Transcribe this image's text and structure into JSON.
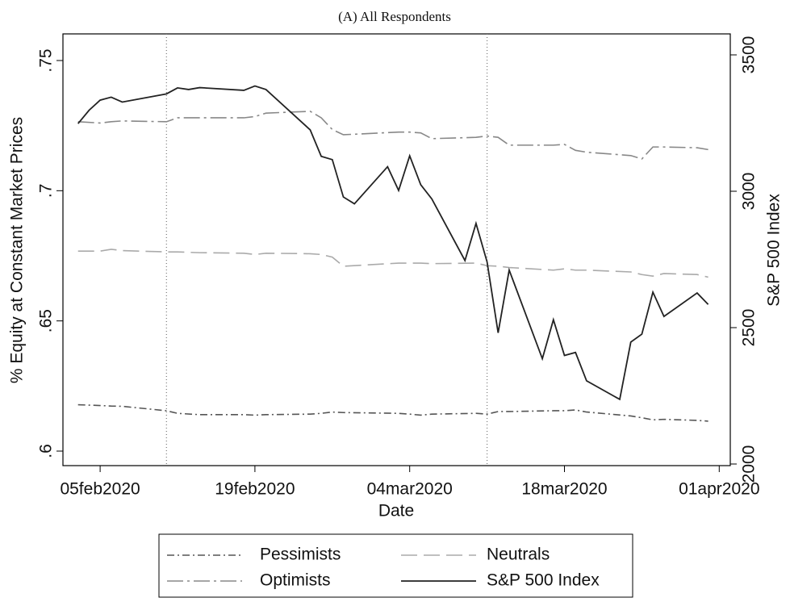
{
  "chart_data": {
    "type": "line",
    "title": "(A)  All Respondents",
    "x_label": "Date",
    "y_label": "% Equity at Constant Market Prices",
    "y2_label": "S&P 500 Index",
    "xlim": [
      "2020-02-02",
      "2020-04-02"
    ],
    "xticks": [
      {
        "value": "2020-02-05",
        "label": "05feb2020"
      },
      {
        "value": "2020-02-19",
        "label": "19feb2020"
      },
      {
        "value": "2020-03-04",
        "label": "04mar2020"
      },
      {
        "value": "2020-03-18",
        "label": "18mar2020"
      },
      {
        "value": "2020-04-01",
        "label": "01apr2020"
      }
    ],
    "ylim": [
      0.6,
      0.75
    ],
    "yticks": [
      {
        "value": 0.6,
        "label": ".6"
      },
      {
        "value": 0.65,
        "label": ".65"
      },
      {
        "value": 0.7,
        "label": ".7"
      },
      {
        "value": 0.75,
        "label": ".75"
      }
    ],
    "y2lim": [
      2000,
      3500
    ],
    "y2ticks": [
      2000,
      2500,
      3000,
      3500
    ],
    "vlines": [
      "2020-02-11",
      "2020-03-11"
    ],
    "series": [
      {
        "name": "Pessimists",
        "color": "#555555",
        "style": "dashdot",
        "x": [
          "2020-02-03",
          "2020-02-05",
          "2020-02-06",
          "2020-02-07",
          "2020-02-11",
          "2020-02-12",
          "2020-02-14",
          "2020-02-18",
          "2020-02-19",
          "2020-02-20",
          "2020-02-24",
          "2020-02-25",
          "2020-02-26",
          "2020-02-27",
          "2020-03-03",
          "2020-03-04",
          "2020-03-05",
          "2020-03-06",
          "2020-03-10",
          "2020-03-11",
          "2020-03-12",
          "2020-03-13",
          "2020-03-17",
          "2020-03-18",
          "2020-03-19",
          "2020-03-20",
          "2020-03-24",
          "2020-03-25",
          "2020-03-26",
          "2020-03-27",
          "2020-03-30",
          "2020-03-31"
        ],
        "values": [
          0.6178,
          0.6175,
          0.6173,
          0.6172,
          0.6155,
          0.6145,
          0.614,
          0.614,
          0.6138,
          0.614,
          0.6142,
          0.6145,
          0.615,
          0.6148,
          0.6145,
          0.6142,
          0.6138,
          0.6142,
          0.6145,
          0.6142,
          0.6152,
          0.6152,
          0.6155,
          0.6155,
          0.6158,
          0.615,
          0.6135,
          0.6128,
          0.612,
          0.6122,
          0.6118,
          0.6115
        ]
      },
      {
        "name": "Neutrals",
        "color": "#aaaaaa",
        "style": "longdash",
        "x": [
          "2020-02-03",
          "2020-02-05",
          "2020-02-06",
          "2020-02-07",
          "2020-02-11",
          "2020-02-12",
          "2020-02-14",
          "2020-02-18",
          "2020-02-19",
          "2020-02-20",
          "2020-02-24",
          "2020-02-25",
          "2020-02-26",
          "2020-02-27",
          "2020-03-03",
          "2020-03-04",
          "2020-03-05",
          "2020-03-06",
          "2020-03-10",
          "2020-03-11",
          "2020-03-12",
          "2020-03-13",
          "2020-03-17",
          "2020-03-18",
          "2020-03-19",
          "2020-03-20",
          "2020-03-24",
          "2020-03-25",
          "2020-03-26",
          "2020-03-27",
          "2020-03-30",
          "2020-03-31"
        ],
        "values": [
          0.6768,
          0.6768,
          0.6775,
          0.677,
          0.6765,
          0.6765,
          0.6762,
          0.676,
          0.6755,
          0.676,
          0.6758,
          0.6755,
          0.6745,
          0.671,
          0.6722,
          0.6722,
          0.6722,
          0.672,
          0.6722,
          0.6712,
          0.671,
          0.6705,
          0.6695,
          0.67,
          0.6695,
          0.6695,
          0.6688,
          0.6678,
          0.6672,
          0.6682,
          0.6678,
          0.6668
        ]
      },
      {
        "name": "Optimists",
        "color": "#888888",
        "style": "longdashdot",
        "x": [
          "2020-02-03",
          "2020-02-05",
          "2020-02-06",
          "2020-02-07",
          "2020-02-11",
          "2020-02-12",
          "2020-02-14",
          "2020-02-18",
          "2020-02-19",
          "2020-02-20",
          "2020-02-24",
          "2020-02-25",
          "2020-02-26",
          "2020-02-27",
          "2020-03-03",
          "2020-03-04",
          "2020-03-05",
          "2020-03-06",
          "2020-03-10",
          "2020-03-11",
          "2020-03-12",
          "2020-03-13",
          "2020-03-17",
          "2020-03-18",
          "2020-03-19",
          "2020-03-20",
          "2020-03-24",
          "2020-03-25",
          "2020-03-26",
          "2020-03-27",
          "2020-03-30",
          "2020-03-31"
        ],
        "values": [
          0.7265,
          0.726,
          0.7265,
          0.7268,
          0.7265,
          0.728,
          0.728,
          0.728,
          0.7285,
          0.7298,
          0.7305,
          0.728,
          0.7235,
          0.7215,
          0.7225,
          0.7225,
          0.7222,
          0.72,
          0.7205,
          0.721,
          0.7205,
          0.7175,
          0.7175,
          0.7178,
          0.7155,
          0.7148,
          0.7135,
          0.7122,
          0.7168,
          0.7168,
          0.7165,
          0.7158
        ]
      },
      {
        "name": "S&P 500 Index",
        "color": "#222222",
        "style": "solid",
        "axis": "y2",
        "x": [
          "2020-02-03",
          "2020-02-04",
          "2020-02-05",
          "2020-02-06",
          "2020-02-07",
          "2020-02-11",
          "2020-02-12",
          "2020-02-13",
          "2020-02-14",
          "2020-02-18",
          "2020-02-19",
          "2020-02-20",
          "2020-02-24",
          "2020-02-25",
          "2020-02-26",
          "2020-02-27",
          "2020-02-28",
          "2020-03-02",
          "2020-03-03",
          "2020-03-04",
          "2020-03-05",
          "2020-03-06",
          "2020-03-09",
          "2020-03-10",
          "2020-03-11",
          "2020-03-12",
          "2020-03-13",
          "2020-03-16",
          "2020-03-17",
          "2020-03-18",
          "2020-03-19",
          "2020-03-20",
          "2020-03-23",
          "2020-03-24",
          "2020-03-25",
          "2020-03-26",
          "2020-03-27",
          "2020-03-30",
          "2020-03-31"
        ],
        "values": [
          3248,
          3297,
          3334,
          3345,
          3327,
          3357,
          3379,
          3373,
          3380,
          3370,
          3386,
          3373,
          3225,
          3128,
          3116,
          2979,
          2954,
          3090,
          3003,
          3130,
          3024,
          2972,
          2746,
          2882,
          2741,
          2481,
          2711,
          2386,
          2529,
          2398,
          2409,
          2305,
          2237,
          2447,
          2476,
          2630,
          2541,
          2627,
          2585
        ]
      }
    ]
  }
}
